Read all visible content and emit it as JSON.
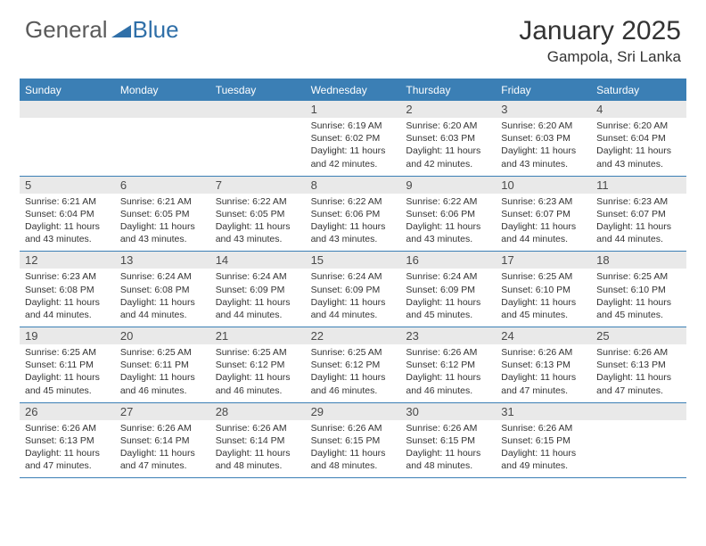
{
  "logo": {
    "text1": "General",
    "text2": "Blue"
  },
  "title": "January 2025",
  "location": "Gampola, Sri Lanka",
  "header_color": "#3b7fb5",
  "bg_color": "#ffffff",
  "daynum_bg": "#e9e9e9",
  "weekday_labels": [
    "Sunday",
    "Monday",
    "Tuesday",
    "Wednesday",
    "Thursday",
    "Friday",
    "Saturday"
  ],
  "weeks": [
    [
      null,
      null,
      null,
      {
        "n": "1",
        "sr": "6:19 AM",
        "ss": "6:02 PM",
        "dl": "11 hours and 42 minutes."
      },
      {
        "n": "2",
        "sr": "6:20 AM",
        "ss": "6:03 PM",
        "dl": "11 hours and 42 minutes."
      },
      {
        "n": "3",
        "sr": "6:20 AM",
        "ss": "6:03 PM",
        "dl": "11 hours and 43 minutes."
      },
      {
        "n": "4",
        "sr": "6:20 AM",
        "ss": "6:04 PM",
        "dl": "11 hours and 43 minutes."
      }
    ],
    [
      {
        "n": "5",
        "sr": "6:21 AM",
        "ss": "6:04 PM",
        "dl": "11 hours and 43 minutes."
      },
      {
        "n": "6",
        "sr": "6:21 AM",
        "ss": "6:05 PM",
        "dl": "11 hours and 43 minutes."
      },
      {
        "n": "7",
        "sr": "6:22 AM",
        "ss": "6:05 PM",
        "dl": "11 hours and 43 minutes."
      },
      {
        "n": "8",
        "sr": "6:22 AM",
        "ss": "6:06 PM",
        "dl": "11 hours and 43 minutes."
      },
      {
        "n": "9",
        "sr": "6:22 AM",
        "ss": "6:06 PM",
        "dl": "11 hours and 43 minutes."
      },
      {
        "n": "10",
        "sr": "6:23 AM",
        "ss": "6:07 PM",
        "dl": "11 hours and 44 minutes."
      },
      {
        "n": "11",
        "sr": "6:23 AM",
        "ss": "6:07 PM",
        "dl": "11 hours and 44 minutes."
      }
    ],
    [
      {
        "n": "12",
        "sr": "6:23 AM",
        "ss": "6:08 PM",
        "dl": "11 hours and 44 minutes."
      },
      {
        "n": "13",
        "sr": "6:24 AM",
        "ss": "6:08 PM",
        "dl": "11 hours and 44 minutes."
      },
      {
        "n": "14",
        "sr": "6:24 AM",
        "ss": "6:09 PM",
        "dl": "11 hours and 44 minutes."
      },
      {
        "n": "15",
        "sr": "6:24 AM",
        "ss": "6:09 PM",
        "dl": "11 hours and 44 minutes."
      },
      {
        "n": "16",
        "sr": "6:24 AM",
        "ss": "6:09 PM",
        "dl": "11 hours and 45 minutes."
      },
      {
        "n": "17",
        "sr": "6:25 AM",
        "ss": "6:10 PM",
        "dl": "11 hours and 45 minutes."
      },
      {
        "n": "18",
        "sr": "6:25 AM",
        "ss": "6:10 PM",
        "dl": "11 hours and 45 minutes."
      }
    ],
    [
      {
        "n": "19",
        "sr": "6:25 AM",
        "ss": "6:11 PM",
        "dl": "11 hours and 45 minutes."
      },
      {
        "n": "20",
        "sr": "6:25 AM",
        "ss": "6:11 PM",
        "dl": "11 hours and 46 minutes."
      },
      {
        "n": "21",
        "sr": "6:25 AM",
        "ss": "6:12 PM",
        "dl": "11 hours and 46 minutes."
      },
      {
        "n": "22",
        "sr": "6:25 AM",
        "ss": "6:12 PM",
        "dl": "11 hours and 46 minutes."
      },
      {
        "n": "23",
        "sr": "6:26 AM",
        "ss": "6:12 PM",
        "dl": "11 hours and 46 minutes."
      },
      {
        "n": "24",
        "sr": "6:26 AM",
        "ss": "6:13 PM",
        "dl": "11 hours and 47 minutes."
      },
      {
        "n": "25",
        "sr": "6:26 AM",
        "ss": "6:13 PM",
        "dl": "11 hours and 47 minutes."
      }
    ],
    [
      {
        "n": "26",
        "sr": "6:26 AM",
        "ss": "6:13 PM",
        "dl": "11 hours and 47 minutes."
      },
      {
        "n": "27",
        "sr": "6:26 AM",
        "ss": "6:14 PM",
        "dl": "11 hours and 47 minutes."
      },
      {
        "n": "28",
        "sr": "6:26 AM",
        "ss": "6:14 PM",
        "dl": "11 hours and 48 minutes."
      },
      {
        "n": "29",
        "sr": "6:26 AM",
        "ss": "6:15 PM",
        "dl": "11 hours and 48 minutes."
      },
      {
        "n": "30",
        "sr": "6:26 AM",
        "ss": "6:15 PM",
        "dl": "11 hours and 48 minutes."
      },
      {
        "n": "31",
        "sr": "6:26 AM",
        "ss": "6:15 PM",
        "dl": "11 hours and 49 minutes."
      },
      null
    ]
  ],
  "labels": {
    "sunrise": "Sunrise:",
    "sunset": "Sunset:",
    "daylight": "Daylight:"
  }
}
